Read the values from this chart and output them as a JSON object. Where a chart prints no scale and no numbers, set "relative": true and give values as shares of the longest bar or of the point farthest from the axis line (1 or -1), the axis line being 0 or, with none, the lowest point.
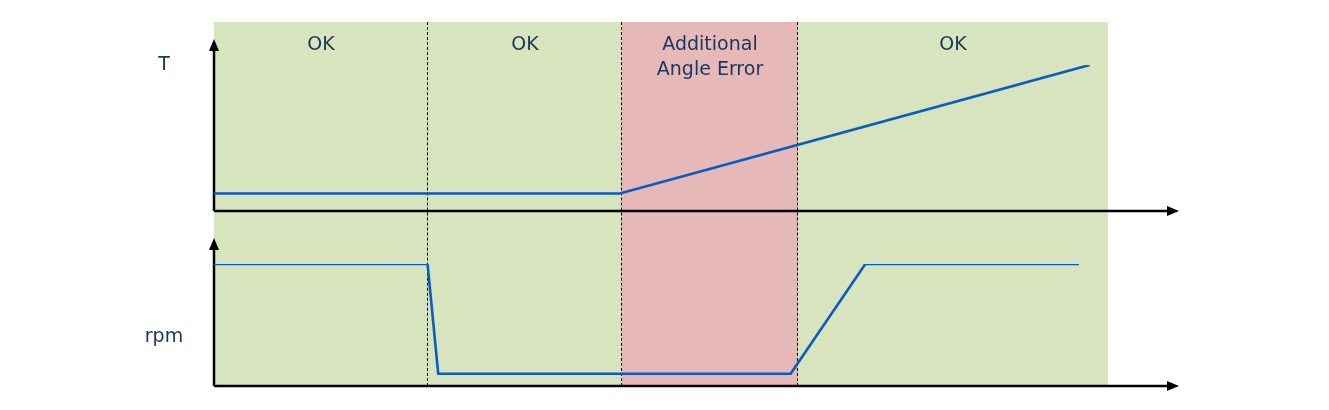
{
  "chart_data": [
    {
      "type": "line",
      "ylabel": "T",
      "relative": true,
      "marker": "none",
      "line_style": "solid",
      "categories": [
        null,
        null,
        null,
        null,
        null,
        null,
        null,
        null,
        null,
        null,
        null,
        null,
        null,
        null,
        null,
        null,
        null,
        null,
        null,
        null,
        null,
        null,
        null,
        null,
        null,
        null,
        null,
        null,
        null,
        null,
        null,
        null,
        null,
        null,
        null,
        null,
        null,
        null,
        null,
        null,
        null,
        null,
        null,
        null,
        null,
        null,
        null,
        null,
        null,
        null,
        null,
        null,
        null,
        null,
        null,
        null,
        null,
        null,
        null,
        null,
        null,
        null,
        null,
        null,
        null,
        null,
        null,
        null,
        null,
        null,
        null,
        null,
        null,
        null,
        null,
        null,
        null,
        null,
        null,
        null,
        null,
        null,
        null,
        null,
        null,
        null,
        null,
        null,
        null,
        null,
        null
      ],
      "series": [
        {
          "color": "#0a5bc4",
          "values": [
            0.12,
            null,
            null,
            null,
            null,
            null,
            null,
            null,
            null,
            null,
            null,
            null,
            null,
            null,
            null,
            null,
            null,
            null,
            null,
            null,
            null,
            null,
            null,
            null,
            null,
            null,
            null,
            null,
            null,
            null,
            null,
            null,
            null,
            null,
            null,
            null,
            null,
            null,
            0.12,
            null,
            null,
            null,
            null,
            null,
            null,
            null,
            null,
            null,
            null,
            null,
            null,
            null,
            null,
            null,
            null,
            null,
            null,
            null,
            null,
            null,
            null,
            null,
            null,
            null,
            null,
            null,
            null,
            null,
            null,
            null,
            null,
            null,
            null,
            null,
            null,
            null,
            null,
            null,
            null,
            null,
            null,
            null,
            1,
            null,
            null,
            null,
            null,
            null,
            null,
            null,
            null
          ]
        }
      ],
      "annotations": [
        "OK",
        "OK",
        "Additional Angle Error",
        "OK"
      ]
    },
    {
      "type": "line",
      "ylabel": "rpm",
      "relative": true,
      "marker": "none",
      "line_style": "solid",
      "categories": [
        null,
        null,
        null,
        null,
        null,
        null,
        null,
        null,
        null,
        null,
        null,
        null,
        null,
        null,
        null,
        null,
        null,
        null,
        null,
        null,
        null,
        null,
        null,
        null,
        null,
        null,
        null,
        null,
        null,
        null,
        null,
        null,
        null,
        null,
        null,
        null,
        null,
        null,
        null,
        null,
        null,
        null,
        null,
        null,
        null,
        null,
        null,
        null,
        null,
        null,
        null,
        null,
        null,
        null,
        null,
        null,
        null,
        null,
        null,
        null,
        null,
        null,
        null,
        null,
        null,
        null,
        null,
        null,
        null,
        null,
        null,
        null,
        null,
        null,
        null,
        null,
        null,
        null,
        null,
        null,
        null,
        null,
        null,
        null,
        null,
        null,
        null,
        null,
        null,
        null,
        null
      ],
      "series": [
        {
          "color": "#0a5bc4",
          "values": [
            1,
            null,
            null,
            null,
            null,
            null,
            null,
            null,
            null,
            null,
            null,
            null,
            null,
            null,
            null,
            null,
            null,
            null,
            null,
            null,
            1,
            0.1,
            null,
            null,
            null,
            null,
            null,
            null,
            null,
            null,
            null,
            null,
            null,
            null,
            null,
            null,
            null,
            null,
            null,
            null,
            null,
            null,
            null,
            null,
            null,
            null,
            null,
            null,
            null,
            null,
            null,
            null,
            null,
            null,
            0.1,
            null,
            null,
            null,
            null,
            null,
            null,
            1,
            null,
            null,
            null,
            null,
            null,
            null,
            null,
            null,
            null,
            null,
            null,
            null,
            null,
            null,
            null,
            null,
            null,
            null,
            null,
            1,
            null,
            null,
            null,
            null,
            null,
            null,
            null,
            null,
            null
          ]
        }
      ]
    }
  ]
}
